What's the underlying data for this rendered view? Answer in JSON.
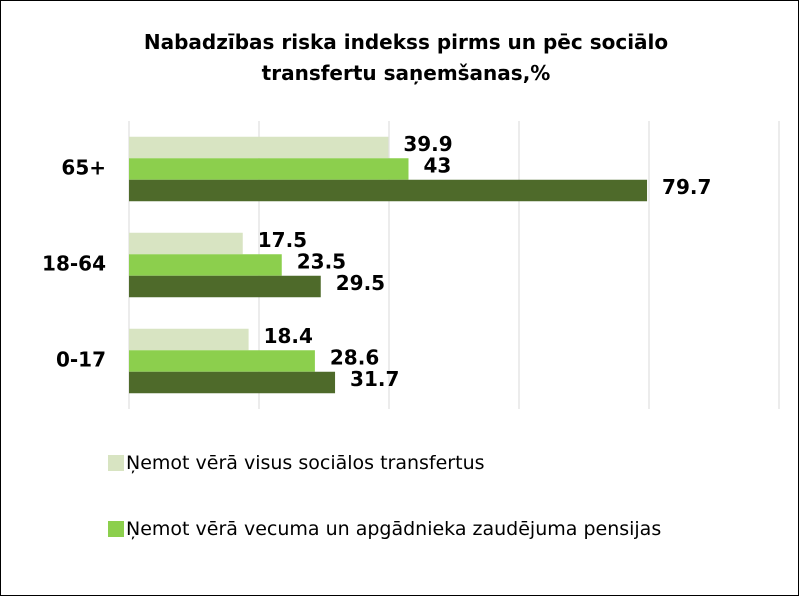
{
  "chart_data": {
    "type": "hbar",
    "title": "Nabadzības riska indekss pirms un pēc sociālo transfertu saņemšanas,%",
    "categories": [
      "65+",
      "18-64",
      "0-17"
    ],
    "series": [
      {
        "name": "Ņemot vērā visus sociālos transfertus",
        "color": "#d8e4c2",
        "values": [
          39.9,
          17.5,
          18.4
        ]
      },
      {
        "name": "Ņemot vērā vecuma un apgādnieka zaudējuma pensijas",
        "color": "#8ccf4d",
        "values": [
          43,
          23.5,
          28.6
        ]
      },
      {
        "color": "#4e6a2a",
        "values": [
          79.7,
          29.5,
          31.7
        ]
      }
    ],
    "xlim": [
      0,
      100
    ],
    "xticks": [
      0,
      20,
      40,
      60,
      80,
      100
    ],
    "grid": true
  }
}
